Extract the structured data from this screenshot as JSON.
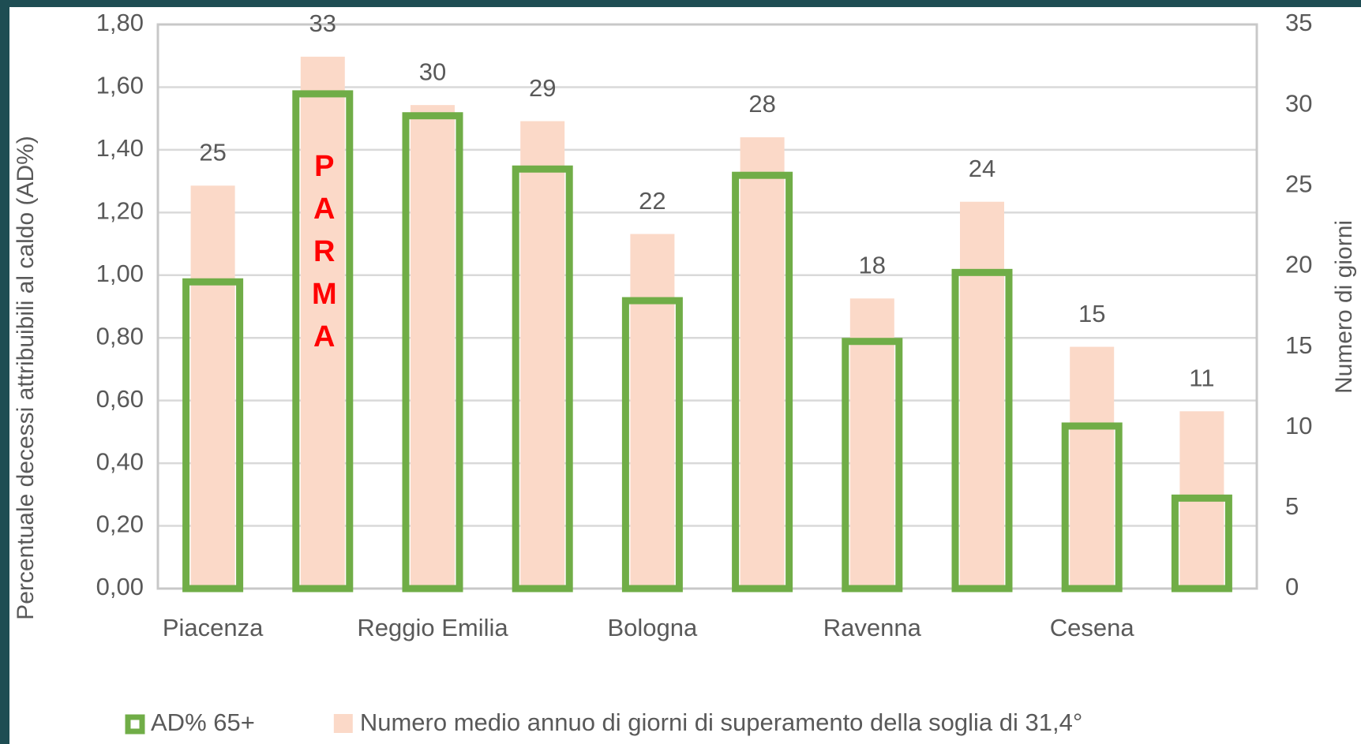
{
  "chart_data": {
    "type": "bar",
    "categories": [
      "Piacenza",
      null,
      "Reggio Emilia",
      null,
      "Bologna",
      null,
      "Ravenna",
      null,
      "Cesena",
      null
    ],
    "series": [
      {
        "name": "AD% 65+",
        "color": "#70ad47",
        "values": [
          0.99,
          1.59,
          1.52,
          1.35,
          0.93,
          1.33,
          0.8,
          1.02,
          0.53,
          0.3
        ]
      },
      {
        "name": "Numero medio annuo di giorni di superamento della soglia di 31,4°",
        "color": "#fbd9c8",
        "axis": "y2",
        "values": [
          25,
          33,
          30,
          29,
          22,
          28,
          18,
          24,
          15,
          11
        ]
      }
    ],
    "ylabel": "Percentuale decessi attribuibili al caldo (AD%)",
    "y2label": "Numero di giorni",
    "ylim": [
      0,
      1.8
    ],
    "yticks": [
      {
        "value": 0,
        "label": "0,00"
      },
      {
        "value": 0.2,
        "label": "0,20"
      },
      {
        "value": 0.4,
        "label": "0,40"
      },
      {
        "value": 0.6,
        "label": "0,60"
      },
      {
        "value": 0.8,
        "label": "0,80"
      },
      {
        "value": 1.0,
        "label": "1,00"
      },
      {
        "value": 1.2,
        "label": "1,20"
      },
      {
        "value": 1.4,
        "label": "1,40"
      },
      {
        "value": 1.6,
        "label": "1,60"
      },
      {
        "value": 1.8,
        "label": "1,80"
      }
    ],
    "y2lim": [
      0,
      35
    ],
    "y2ticks": [
      0,
      5,
      10,
      15,
      20,
      25,
      30,
      35
    ],
    "grid": true,
    "legend": "bottom",
    "annotation": "PARMA"
  }
}
